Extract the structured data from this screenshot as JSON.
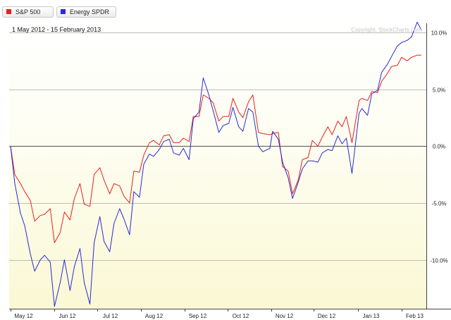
{
  "legend": {
    "items": [
      {
        "label": "S&P 500",
        "color": "#e8211a"
      },
      {
        "label": "Energy SPDR",
        "color": "#2a2ad6"
      }
    ]
  },
  "chart_data": {
    "type": "line",
    "subtitle": "1 May 2012 - 15 February 2013",
    "watermark": "Copyright, StockCharts.com",
    "x_unit": "date",
    "x_range": [
      "2012-05-01",
      "2013-02-15"
    ],
    "x_tick_labels": [
      "May 12",
      "Jun 12",
      "Jul 12",
      "Aug 12",
      "Sep 12",
      "Oct 12",
      "Nov 12",
      "Dec 12",
      "Jan 13",
      "Feb 13"
    ],
    "y_unit": "percent",
    "y_range": [
      -14.3,
      10.8
    ],
    "y_ticks": [
      10,
      5,
      0,
      -5,
      -10
    ],
    "y_tick_labels": [
      "10.0%",
      "5.0%",
      "0.0%",
      "-5.0%",
      "-10.0%"
    ],
    "zero_line": true,
    "grid": true,
    "legend_position": "top-left",
    "series": [
      {
        "name": "S&P 500",
        "color": "#e8211a",
        "points": [
          [
            "2012-05-01",
            0.0
          ],
          [
            "2012-05-04",
            -2.5
          ],
          [
            "2012-05-08",
            -3.3
          ],
          [
            "2012-05-11",
            -4.0
          ],
          [
            "2012-05-15",
            -4.8
          ],
          [
            "2012-05-18",
            -6.6
          ],
          [
            "2012-05-22",
            -6.1
          ],
          [
            "2012-05-25",
            -6.0
          ],
          [
            "2012-05-29",
            -5.5
          ],
          [
            "2012-06-01",
            -8.5
          ],
          [
            "2012-06-05",
            -7.6
          ],
          [
            "2012-06-08",
            -5.8
          ],
          [
            "2012-06-12",
            -6.5
          ],
          [
            "2012-06-15",
            -4.6
          ],
          [
            "2012-06-19",
            -3.3
          ],
          [
            "2012-06-22",
            -5.1
          ],
          [
            "2012-06-26",
            -5.3
          ],
          [
            "2012-06-29",
            -2.5
          ],
          [
            "2012-07-03",
            -1.9
          ],
          [
            "2012-07-06",
            -3.0
          ],
          [
            "2012-07-10",
            -4.2
          ],
          [
            "2012-07-13",
            -3.3
          ],
          [
            "2012-07-17",
            -3.5
          ],
          [
            "2012-07-20",
            -4.4
          ],
          [
            "2012-07-24",
            -5.0
          ],
          [
            "2012-07-27",
            -2.2
          ],
          [
            "2012-07-31",
            -2.3
          ],
          [
            "2012-08-03",
            -0.8
          ],
          [
            "2012-08-07",
            0.3
          ],
          [
            "2012-08-10",
            0.5
          ],
          [
            "2012-08-14",
            0.1
          ],
          [
            "2012-08-17",
            0.9
          ],
          [
            "2012-08-21",
            1.0
          ],
          [
            "2012-08-24",
            0.3
          ],
          [
            "2012-08-28",
            0.3
          ],
          [
            "2012-08-31",
            0.7
          ],
          [
            "2012-09-04",
            0.4
          ],
          [
            "2012-09-07",
            2.6
          ],
          [
            "2012-09-11",
            2.6
          ],
          [
            "2012-09-14",
            4.5
          ],
          [
            "2012-09-18",
            4.2
          ],
          [
            "2012-09-21",
            3.8
          ],
          [
            "2012-09-25",
            2.2
          ],
          [
            "2012-09-28",
            2.6
          ],
          [
            "2012-10-02",
            2.6
          ],
          [
            "2012-10-05",
            4.2
          ],
          [
            "2012-10-09",
            3.0
          ],
          [
            "2012-10-12",
            2.5
          ],
          [
            "2012-10-16",
            3.9
          ],
          [
            "2012-10-19",
            4.5
          ],
          [
            "2012-10-23",
            1.2
          ],
          [
            "2012-10-26",
            1.1
          ],
          [
            "2012-10-31",
            1.0
          ],
          [
            "2012-11-02",
            1.1
          ],
          [
            "2012-11-06",
            1.2
          ],
          [
            "2012-11-09",
            -1.8
          ],
          [
            "2012-11-13",
            -2.2
          ],
          [
            "2012-11-16",
            -4.2
          ],
          [
            "2012-11-20",
            -3.0
          ],
          [
            "2012-11-23",
            -1.2
          ],
          [
            "2012-11-27",
            -1.0
          ],
          [
            "2012-11-30",
            0.5
          ],
          [
            "2012-12-04",
            0.0
          ],
          [
            "2012-12-07",
            0.8
          ],
          [
            "2012-12-11",
            1.7
          ],
          [
            "2012-12-14",
            1.0
          ],
          [
            "2012-12-18",
            2.2
          ],
          [
            "2012-12-21",
            1.7
          ],
          [
            "2012-12-24",
            2.6
          ],
          [
            "2012-12-28",
            0.3
          ],
          [
            "2013-01-02",
            4.0
          ],
          [
            "2013-01-04",
            4.2
          ],
          [
            "2013-01-08",
            4.0
          ],
          [
            "2013-01-11",
            4.8
          ],
          [
            "2013-01-15",
            4.7
          ],
          [
            "2013-01-18",
            5.7
          ],
          [
            "2013-01-22",
            6.4
          ],
          [
            "2013-01-25",
            7.0
          ],
          [
            "2013-01-29",
            7.1
          ],
          [
            "2013-02-01",
            7.8
          ],
          [
            "2013-02-05",
            7.5
          ],
          [
            "2013-02-08",
            7.8
          ],
          [
            "2013-02-12",
            8.0
          ],
          [
            "2013-02-15",
            8.0
          ]
        ]
      },
      {
        "name": "Energy SPDR",
        "color": "#2a2ad6",
        "points": [
          [
            "2012-05-01",
            0.0
          ],
          [
            "2012-05-04",
            -3.3
          ],
          [
            "2012-05-08",
            -5.9
          ],
          [
            "2012-05-11",
            -7.0
          ],
          [
            "2012-05-15",
            -9.5
          ],
          [
            "2012-05-18",
            -11.0
          ],
          [
            "2012-05-22",
            -10.0
          ],
          [
            "2012-05-25",
            -9.6
          ],
          [
            "2012-05-29",
            -10.2
          ],
          [
            "2012-06-01",
            -14.1
          ],
          [
            "2012-06-05",
            -12.0
          ],
          [
            "2012-06-08",
            -10.0
          ],
          [
            "2012-06-12",
            -12.7
          ],
          [
            "2012-06-15",
            -10.6
          ],
          [
            "2012-06-19",
            -9.0
          ],
          [
            "2012-06-22",
            -12.0
          ],
          [
            "2012-06-26",
            -13.9
          ],
          [
            "2012-06-29",
            -8.5
          ],
          [
            "2012-07-03",
            -6.2
          ],
          [
            "2012-07-06",
            -8.4
          ],
          [
            "2012-07-10",
            -9.3
          ],
          [
            "2012-07-13",
            -6.8
          ],
          [
            "2012-07-17",
            -5.5
          ],
          [
            "2012-07-20",
            -6.4
          ],
          [
            "2012-07-24",
            -7.8
          ],
          [
            "2012-07-27",
            -4.0
          ],
          [
            "2012-07-31",
            -4.5
          ],
          [
            "2012-08-03",
            -1.6
          ],
          [
            "2012-08-07",
            -0.7
          ],
          [
            "2012-08-10",
            -0.9
          ],
          [
            "2012-08-14",
            -0.3
          ],
          [
            "2012-08-17",
            0.4
          ],
          [
            "2012-08-21",
            0.6
          ],
          [
            "2012-08-24",
            -0.6
          ],
          [
            "2012-08-28",
            -0.8
          ],
          [
            "2012-08-31",
            -0.2
          ],
          [
            "2012-09-04",
            -1.2
          ],
          [
            "2012-09-07",
            2.4
          ],
          [
            "2012-09-11",
            3.0
          ],
          [
            "2012-09-14",
            6.0
          ],
          [
            "2012-09-18",
            4.5
          ],
          [
            "2012-09-21",
            3.1
          ],
          [
            "2012-09-25",
            1.2
          ],
          [
            "2012-09-28",
            1.8
          ],
          [
            "2012-10-02",
            2.0
          ],
          [
            "2012-10-05",
            3.4
          ],
          [
            "2012-10-09",
            1.7
          ],
          [
            "2012-10-12",
            1.3
          ],
          [
            "2012-10-16",
            3.3
          ],
          [
            "2012-10-19",
            3.0
          ],
          [
            "2012-10-23",
            0.0
          ],
          [
            "2012-10-26",
            -0.5
          ],
          [
            "2012-10-31",
            -0.2
          ],
          [
            "2012-11-02",
            1.3
          ],
          [
            "2012-11-06",
            0.6
          ],
          [
            "2012-11-09",
            -1.4
          ],
          [
            "2012-11-13",
            -2.8
          ],
          [
            "2012-11-16",
            -4.6
          ],
          [
            "2012-11-20",
            -3.2
          ],
          [
            "2012-11-23",
            -2.0
          ],
          [
            "2012-11-27",
            -1.3
          ],
          [
            "2012-11-30",
            -1.3
          ],
          [
            "2012-12-04",
            -1.4
          ],
          [
            "2012-12-07",
            -0.6
          ],
          [
            "2012-12-11",
            -0.3
          ],
          [
            "2012-12-14",
            -0.4
          ],
          [
            "2012-12-18",
            0.9
          ],
          [
            "2012-12-21",
            0.2
          ],
          [
            "2012-12-24",
            0.7
          ],
          [
            "2012-12-28",
            -2.4
          ],
          [
            "2013-01-02",
            2.9
          ],
          [
            "2013-01-04",
            3.3
          ],
          [
            "2013-01-08",
            2.7
          ],
          [
            "2013-01-11",
            4.6
          ],
          [
            "2013-01-15",
            4.9
          ],
          [
            "2013-01-18",
            6.5
          ],
          [
            "2013-01-22",
            7.2
          ],
          [
            "2013-01-25",
            7.9
          ],
          [
            "2013-01-29",
            8.8
          ],
          [
            "2013-02-01",
            9.1
          ],
          [
            "2013-02-05",
            9.3
          ],
          [
            "2013-02-08",
            9.6
          ],
          [
            "2013-02-12",
            10.9
          ],
          [
            "2013-02-15",
            10.2
          ]
        ]
      }
    ]
  }
}
